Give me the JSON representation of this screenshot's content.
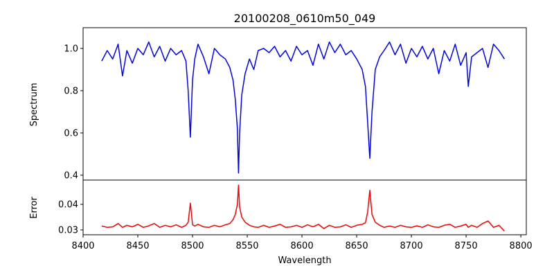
{
  "chart_data": {
    "type": "line",
    "title": "20100208_0610m50_049",
    "xlabel": "Wavelength",
    "xlim": [
      8400,
      8805
    ],
    "xticks": [
      8400,
      8450,
      8500,
      8550,
      8600,
      8650,
      8700,
      8750,
      8800
    ],
    "x": [
      8417,
      8422,
      8427,
      8432,
      8436,
      8440,
      8445,
      8450,
      8455,
      8460,
      8465,
      8470,
      8475,
      8480,
      8485,
      8490,
      8494,
      8496,
      8498,
      8500,
      8502,
      8505,
      8510,
      8515,
      8520,
      8525,
      8530,
      8534,
      8537,
      8539,
      8541,
      8542,
      8543,
      8545,
      8548,
      8552,
      8556,
      8560,
      8565,
      8570,
      8575,
      8580,
      8585,
      8590,
      8595,
      8600,
      8605,
      8610,
      8615,
      8620,
      8625,
      8630,
      8635,
      8640,
      8645,
      8650,
      8655,
      8658,
      8660,
      8662,
      8664,
      8667,
      8671,
      8675,
      8680,
      8685,
      8690,
      8695,
      8700,
      8705,
      8710,
      8715,
      8720,
      8725,
      8730,
      8735,
      8740,
      8745,
      8750,
      8752,
      8755,
      8760,
      8765,
      8770,
      8775,
      8780,
      8785
    ],
    "panels": [
      {
        "name": "Spectrum",
        "ylabel": "Spectrum",
        "ylim": [
          0.377,
          1.098
        ],
        "yticks": [
          0.4,
          0.6,
          0.8,
          1.0
        ],
        "tick_format": 1,
        "color": "#0000ff",
        "values": [
          0.94,
          0.99,
          0.95,
          1.02,
          0.87,
          0.99,
          0.93,
          1.0,
          0.97,
          1.03,
          0.96,
          1.01,
          0.94,
          1.0,
          0.97,
          0.99,
          0.94,
          0.8,
          0.58,
          0.85,
          0.95,
          1.02,
          0.96,
          0.88,
          1.0,
          0.97,
          0.95,
          0.91,
          0.85,
          0.76,
          0.62,
          0.41,
          0.6,
          0.78,
          0.88,
          0.95,
          0.9,
          0.99,
          1.0,
          0.98,
          1.01,
          0.96,
          0.99,
          0.94,
          1.01,
          0.97,
          0.99,
          0.92,
          1.02,
          0.95,
          1.03,
          0.98,
          1.02,
          0.97,
          0.99,
          0.95,
          0.9,
          0.82,
          0.65,
          0.48,
          0.7,
          0.9,
          0.96,
          0.99,
          1.03,
          0.97,
          1.02,
          0.93,
          1.0,
          0.96,
          1.01,
          0.95,
          1.0,
          0.88,
          0.99,
          0.94,
          1.02,
          0.92,
          0.98,
          0.82,
          0.96,
          0.98,
          1.0,
          0.91,
          1.02,
          0.99,
          0.95
        ]
      },
      {
        "name": "Error",
        "ylabel": "Error",
        "ylim": [
          0.0281,
          0.0495
        ],
        "yticks": [
          0.03,
          0.04
        ],
        "tick_format": 2,
        "color": "#ff0000",
        "values": [
          0.0315,
          0.031,
          0.0312,
          0.0325,
          0.031,
          0.0318,
          0.0312,
          0.0322,
          0.031,
          0.0316,
          0.0325,
          0.031,
          0.0318,
          0.0312,
          0.032,
          0.031,
          0.0318,
          0.033,
          0.0405,
          0.032,
          0.0315,
          0.0322,
          0.0312,
          0.031,
          0.0318,
          0.0312,
          0.032,
          0.0325,
          0.034,
          0.036,
          0.04,
          0.0475,
          0.039,
          0.035,
          0.033,
          0.0318,
          0.0312,
          0.031,
          0.0318,
          0.031,
          0.0315,
          0.0322,
          0.031,
          0.0312,
          0.0318,
          0.031,
          0.032,
          0.0312,
          0.0322,
          0.0305,
          0.0318,
          0.031,
          0.0312,
          0.032,
          0.031,
          0.0318,
          0.0322,
          0.0328,
          0.037,
          0.0455,
          0.036,
          0.033,
          0.0318,
          0.031,
          0.0315,
          0.031,
          0.0318,
          0.0312,
          0.031,
          0.0316,
          0.031,
          0.032,
          0.0312,
          0.031,
          0.0318,
          0.0322,
          0.031,
          0.0315,
          0.0322,
          0.031,
          0.0318,
          0.031,
          0.0325,
          0.0335,
          0.031,
          0.0318,
          0.0295
        ]
      }
    ]
  }
}
